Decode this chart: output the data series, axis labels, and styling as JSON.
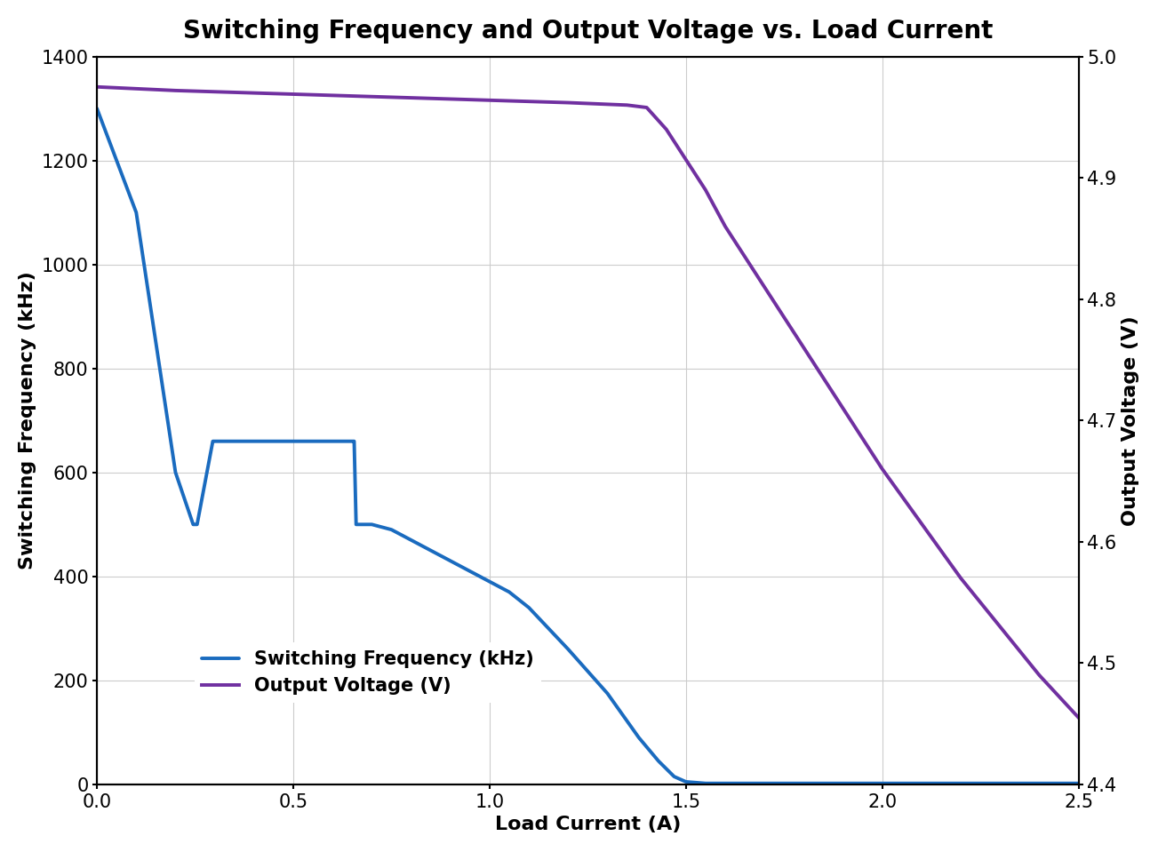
{
  "title": "Switching Frequency and Output Voltage vs. Load Current",
  "xlabel": "Load Current (A)",
  "ylabel_left": "Switching Frequency (kHz)",
  "ylabel_right": "Output Voltage (V)",
  "freq_x": [
    0.0,
    0.1,
    0.2,
    0.245,
    0.248,
    0.252,
    0.255,
    0.295,
    0.3,
    0.65,
    0.655,
    0.66,
    0.695,
    0.7,
    0.75,
    0.8,
    0.9,
    1.0,
    1.05,
    1.1,
    1.2,
    1.3,
    1.38,
    1.43,
    1.47,
    1.5,
    1.55,
    1.6,
    1.8,
    2.0,
    2.2,
    2.5
  ],
  "freq_y": [
    1300,
    1100,
    600,
    500,
    500,
    500,
    500,
    660,
    660,
    660,
    660,
    500,
    500,
    500,
    490,
    470,
    430,
    390,
    370,
    340,
    260,
    175,
    90,
    45,
    15,
    5,
    2,
    2,
    2,
    2,
    2,
    2
  ],
  "volt_x": [
    0.0,
    0.2,
    0.4,
    0.6,
    0.8,
    1.0,
    1.2,
    1.35,
    1.4,
    1.45,
    1.5,
    1.55,
    1.6,
    1.7,
    1.8,
    1.9,
    2.0,
    2.1,
    2.2,
    2.3,
    2.4,
    2.5
  ],
  "volt_y": [
    4.975,
    4.972,
    4.97,
    4.968,
    4.966,
    4.964,
    4.962,
    4.96,
    4.958,
    4.94,
    4.915,
    4.89,
    4.86,
    4.81,
    4.76,
    4.71,
    4.66,
    4.615,
    4.57,
    4.53,
    4.49,
    4.455
  ],
  "freq_color": "#1a6bbf",
  "volt_color": "#7030a0",
  "freq_label": "Switching Frequency (kHz)",
  "volt_label": "Output Voltage (V)",
  "xlim": [
    0,
    2.5
  ],
  "ylim_left": [
    0,
    1400
  ],
  "ylim_right": [
    4.4,
    5.0
  ],
  "xticks": [
    0,
    0.5,
    1.0,
    1.5,
    2.0,
    2.5
  ],
  "yticks_left": [
    0,
    200,
    400,
    600,
    800,
    1000,
    1200,
    1400
  ],
  "yticks_right": [
    4.4,
    4.5,
    4.6,
    4.7,
    4.8,
    4.9,
    5.0
  ],
  "line_width": 2.8,
  "background_color": "#ffffff",
  "grid_color": "#cccccc",
  "title_fontsize": 20,
  "label_fontsize": 16,
  "tick_fontsize": 15,
  "legend_fontsize": 15
}
